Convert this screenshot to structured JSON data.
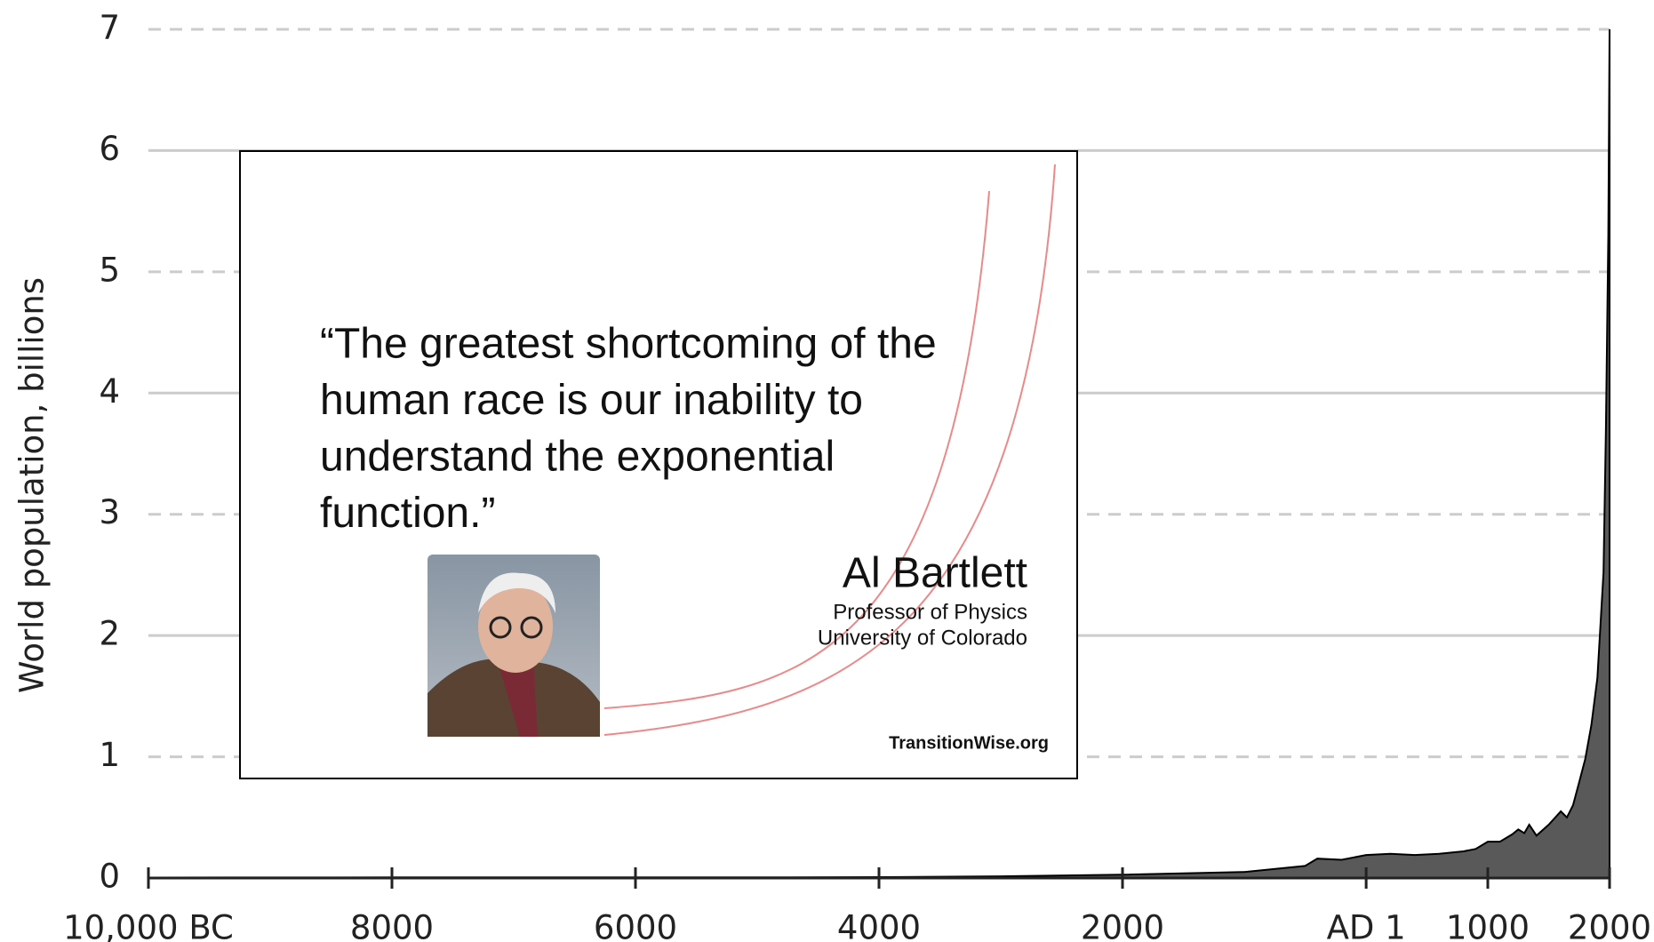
{
  "chart_data": {
    "type": "area",
    "y_label": "World population, billions",
    "x": [
      -10000,
      -8000,
      -6000,
      -5000,
      -4000,
      -3000,
      -2000,
      -1000,
      -500,
      -400,
      -200,
      1,
      200,
      400,
      600,
      800,
      900,
      1000,
      1100,
      1200,
      1250,
      1300,
      1340,
      1400,
      1500,
      1600,
      1650,
      1700,
      1750,
      1800,
      1850,
      1900,
      1950,
      1970,
      1990,
      2000
    ],
    "series": [
      {
        "name": "World population",
        "color": "#595959",
        "values": [
          0.004,
          0.005,
          0.005,
          0.005,
          0.007,
          0.014,
          0.027,
          0.05,
          0.1,
          0.16,
          0.15,
          0.19,
          0.2,
          0.19,
          0.2,
          0.22,
          0.24,
          0.3,
          0.3,
          0.36,
          0.4,
          0.37,
          0.44,
          0.35,
          0.44,
          0.55,
          0.5,
          0.6,
          0.79,
          0.98,
          1.26,
          1.65,
          2.52,
          3.7,
          5.3,
          7.0
        ]
      }
    ],
    "xlim": [
      -10000,
      2000
    ],
    "xticks": [
      {
        "value": -10000,
        "label": "10,000 BC"
      },
      {
        "value": -8000,
        "label": "8000"
      },
      {
        "value": -6000,
        "label": "6000"
      },
      {
        "value": -4000,
        "label": "4000"
      },
      {
        "value": -2000,
        "label": "2000"
      },
      {
        "value": 1,
        "label": "AD 1"
      },
      1000,
      2000
    ],
    "ylim": [
      0,
      7
    ],
    "yticks": [
      0,
      1,
      2,
      3,
      4,
      5,
      6,
      7
    ],
    "grid": true,
    "annotations": {
      "quote_lines": [
        "“The greatest shortcoming of the",
        "human race is our inability to",
        "understand the exponential",
        "function.”"
      ],
      "name": "Al Bartlett",
      "role": "Professor of Physics",
      "institution": "University of Colorado",
      "source": "TransitionWise.org"
    }
  }
}
